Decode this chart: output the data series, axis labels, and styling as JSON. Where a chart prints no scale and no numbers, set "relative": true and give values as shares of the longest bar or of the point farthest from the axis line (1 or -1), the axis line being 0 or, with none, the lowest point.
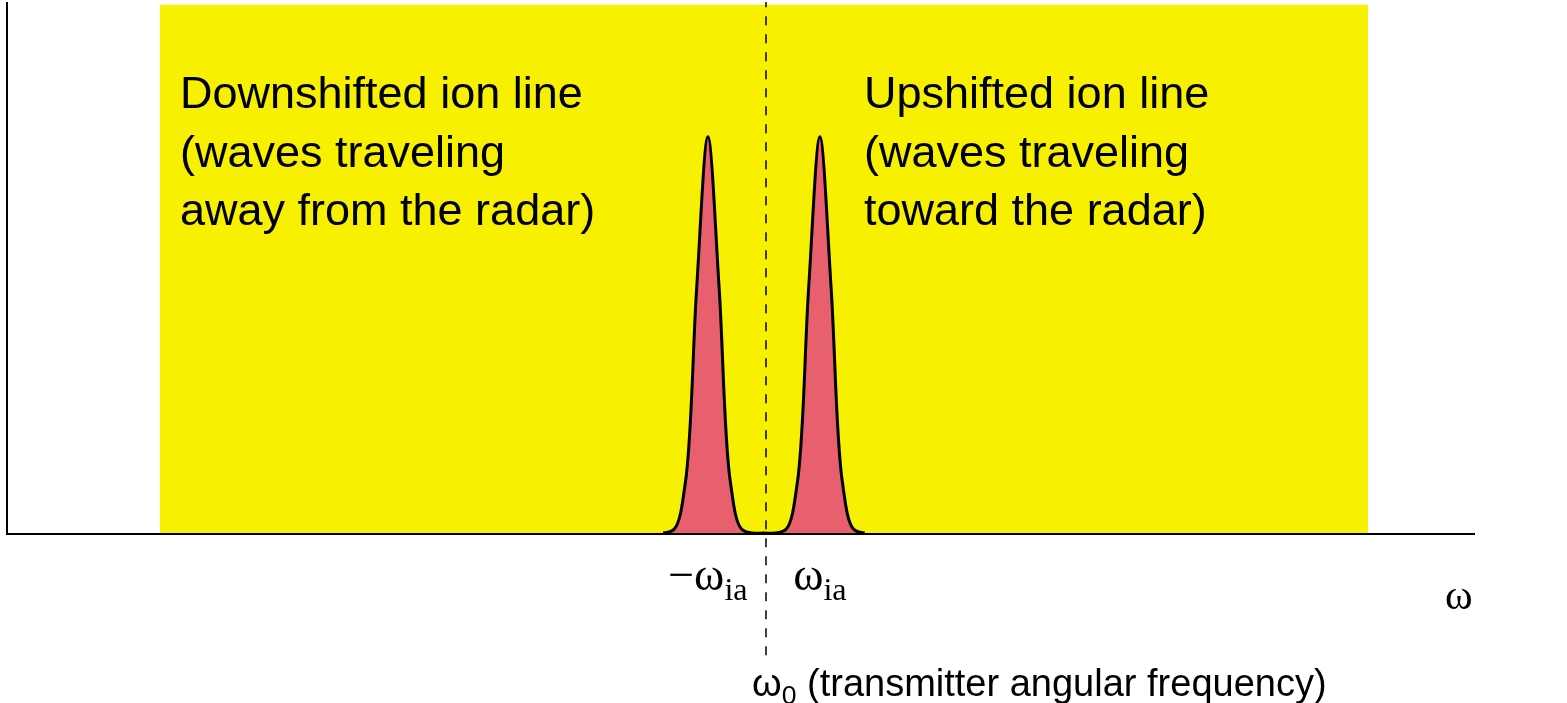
{
  "chart_data": {
    "type": "area",
    "relative": true,
    "xlabel": "ω",
    "categories": [
      null,
      null,
      null,
      null,
      null,
      null,
      null,
      null,
      null,
      null,
      null,
      null,
      null,
      null,
      null,
      null,
      null,
      null,
      null,
      null,
      null,
      null,
      null,
      null,
      null,
      null,
      null,
      null,
      null,
      null,
      null,
      null,
      null,
      null,
      null,
      null,
      null,
      null,
      null,
      null,
      null,
      null,
      null,
      null,
      null,
      null,
      null,
      null,
      null,
      null,
      null,
      null,
      null,
      null,
      null,
      null,
      null,
      null,
      null,
      null,
      null,
      null,
      "−ω$_{ia}$",
      null,
      null,
      null,
      null,
      null,
      null,
      null,
      null,
      null,
      "ω$_{ia}$",
      null,
      null,
      null,
      null,
      null,
      null,
      null,
      null,
      null,
      null,
      null,
      null,
      null,
      null,
      null,
      null,
      null,
      null,
      null,
      null,
      null,
      null,
      null,
      null,
      null,
      null,
      null,
      null,
      null,
      null,
      null,
      null,
      null,
      null,
      null,
      null,
      null,
      null,
      null,
      null,
      null,
      null,
      null,
      null,
      null,
      null,
      null,
      null,
      null,
      null,
      null,
      null,
      null,
      null,
      null,
      null,
      null,
      null
    ],
    "series": [
      {
        "color": "#e8606e",
        "values": [
          null,
          null,
          null,
          null,
          null,
          null,
          null,
          null,
          null,
          null,
          null,
          null,
          null,
          null,
          null,
          null,
          null,
          null,
          null,
          null,
          null,
          null,
          null,
          null,
          null,
          null,
          null,
          null,
          null,
          null,
          null,
          null,
          null,
          null,
          null,
          null,
          null,
          null,
          null,
          null,
          null,
          null,
          null,
          null,
          null,
          null,
          null,
          null,
          null,
          null,
          null,
          null,
          null,
          null,
          null,
          null,
          null,
          null,
          0,
          0.01,
          0.13,
          0.62,
          1,
          0.62,
          0.13,
          0.01,
          0,
          0,
          0,
          0.01,
          0.13,
          0.62,
          1,
          0.62,
          0.13,
          0.01,
          0,
          null,
          null,
          null,
          null,
          null,
          null,
          null,
          null,
          null,
          null,
          null,
          null,
          null,
          null,
          null,
          null,
          null,
          null,
          null,
          null,
          null,
          null,
          null,
          null,
          null,
          null,
          null,
          null,
          null,
          null,
          null,
          null,
          null,
          null,
          null,
          null,
          null,
          null,
          null,
          null,
          null,
          null,
          null,
          null,
          null,
          null,
          null,
          null,
          null,
          null,
          null,
          null,
          null,
          null
        ]
      }
    ],
    "annotations": [
      "Downshifted ion line\n(waves traveling\naway from the radar)",
      "Upshifted ion line\n(waves traveling\ntoward the radar)",
      "ω$_{0}$ (transmitter angular frequency)"
    ],
    "tick_labels": "x"
  }
}
